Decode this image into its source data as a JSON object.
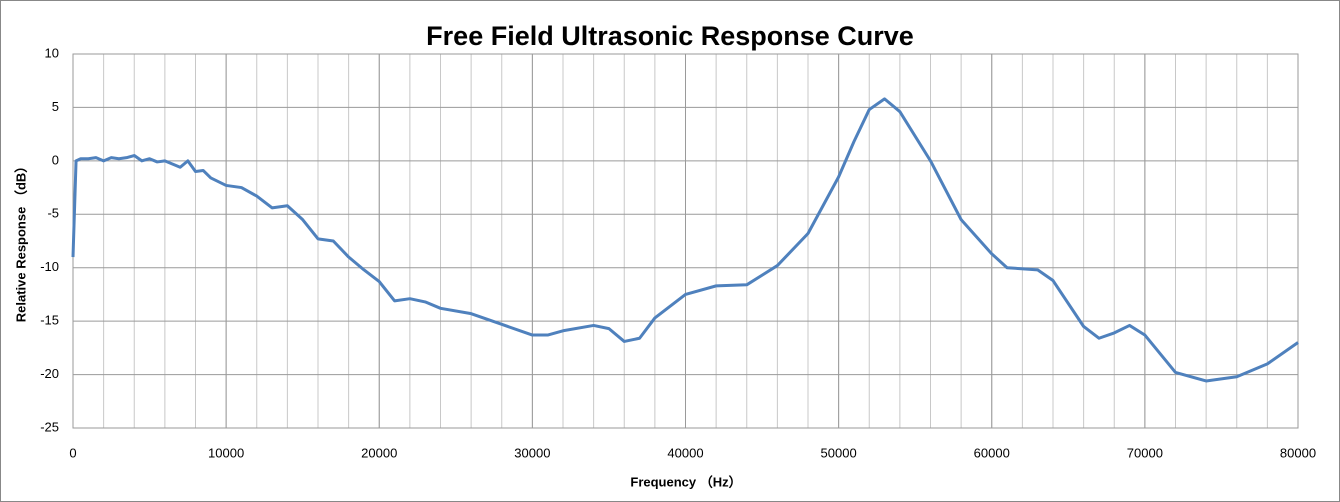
{
  "chart_data": {
    "type": "line",
    "title": "Free Field Ultrasonic Response Curve",
    "xlabel": "Frequency （Hz）",
    "ylabel": "Relative Response （dB）",
    "xlim": [
      0,
      80000
    ],
    "xticks": [
      0,
      10000,
      20000,
      30000,
      40000,
      50000,
      60000,
      70000,
      80000
    ],
    "ylim": [
      -25,
      10
    ],
    "yticks": [
      -25,
      -20,
      -15,
      -10,
      -5,
      0,
      5,
      10
    ],
    "grid": true,
    "grid_x_step": 2000,
    "series": [
      {
        "name": "Response",
        "color": "#4f81bd",
        "x": [
          0,
          200,
          500,
          1000,
          1500,
          2000,
          2500,
          3000,
          3500,
          4000,
          4500,
          5000,
          5500,
          6000,
          7000,
          7500,
          8000,
          8500,
          9000,
          10000,
          11000,
          12000,
          13000,
          14000,
          15000,
          16000,
          17000,
          18000,
          19000,
          20000,
          21000,
          22000,
          23000,
          24000,
          26000,
          28000,
          30000,
          31000,
          32000,
          34000,
          35000,
          36000,
          37000,
          38000,
          40000,
          42000,
          44000,
          46000,
          48000,
          50000,
          51000,
          52000,
          53000,
          54000,
          56000,
          58000,
          60000,
          61000,
          63000,
          64000,
          66000,
          67000,
          68000,
          69000,
          70000,
          72000,
          74000,
          76000,
          78000,
          80000
        ],
        "values": [
          -9,
          0,
          0.2,
          0.2,
          0.3,
          0,
          0.3,
          0.2,
          0.3,
          0.5,
          0,
          0.2,
          -0.1,
          0,
          -0.6,
          0,
          -1,
          -0.9,
          -1.6,
          -2.3,
          -2.5,
          -3.3,
          -4.4,
          -4.2,
          -5.5,
          -7.3,
          -7.5,
          -9,
          -10.2,
          -11.3,
          -13.1,
          -12.9,
          -13.2,
          -13.8,
          -14.3,
          -15.3,
          -16.3,
          -16.3,
          -15.9,
          -15.4,
          -15.7,
          -16.9,
          -16.6,
          -14.7,
          -12.5,
          -11.7,
          -11.6,
          -9.8,
          -6.8,
          -1.5,
          1.8,
          4.8,
          5.8,
          4.6,
          0,
          -5.5,
          -8.7,
          -10,
          -10.2,
          -11.2,
          -15.5,
          -16.6,
          -16.1,
          -15.4,
          -16.3,
          -19.8,
          -20.6,
          -20.2,
          -19,
          -17
        ]
      }
    ]
  }
}
